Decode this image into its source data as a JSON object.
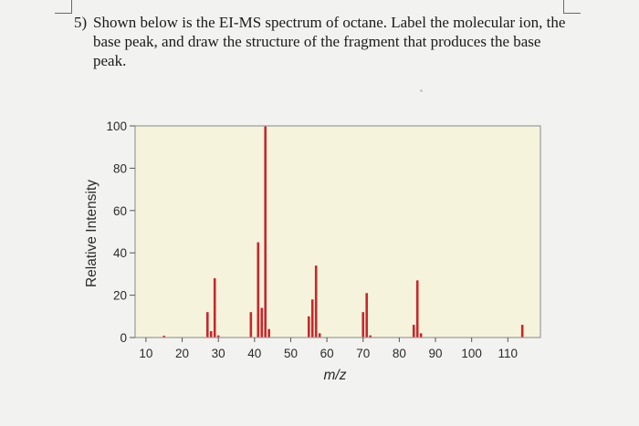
{
  "question": {
    "number": "5)",
    "text": "Shown below is the EI-MS spectrum of octane. Label the molecular ion, the base peak, and draw the structure of the fragment that produces the base peak."
  },
  "colors": {
    "plot_background": "#f5f3dc",
    "peak": "#c8272c",
    "frame": "#9a9a9a",
    "page": "#f2f2f0"
  },
  "chart_data": {
    "type": "bar",
    "xlabel": "m/z",
    "ylabel": "Relative Intensity",
    "xlim": [
      7,
      119
    ],
    "ylim": [
      0,
      100
    ],
    "x_ticks": [
      10,
      20,
      30,
      40,
      50,
      60,
      70,
      80,
      90,
      100,
      110
    ],
    "y_ticks": [
      0,
      20,
      40,
      60,
      80,
      100
    ],
    "grid": false,
    "peaks": [
      {
        "x": 15,
        "y": 0.8
      },
      {
        "x": 27,
        "y": 12
      },
      {
        "x": 28,
        "y": 3
      },
      {
        "x": 29,
        "y": 28
      },
      {
        "x": 30,
        "y": 1
      },
      {
        "x": 39,
        "y": 12
      },
      {
        "x": 41,
        "y": 45
      },
      {
        "x": 42,
        "y": 14
      },
      {
        "x": 43,
        "y": 100
      },
      {
        "x": 44,
        "y": 4
      },
      {
        "x": 55,
        "y": 10
      },
      {
        "x": 56,
        "y": 18
      },
      {
        "x": 57,
        "y": 34
      },
      {
        "x": 58,
        "y": 2
      },
      {
        "x": 70,
        "y": 12
      },
      {
        "x": 71,
        "y": 21
      },
      {
        "x": 72,
        "y": 1
      },
      {
        "x": 84,
        "y": 6
      },
      {
        "x": 85,
        "y": 27
      },
      {
        "x": 86,
        "y": 2
      },
      {
        "x": 114,
        "y": 6
      }
    ]
  }
}
